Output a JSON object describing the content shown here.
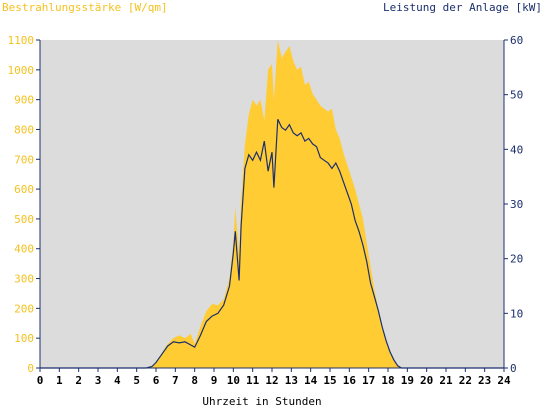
{
  "chart_data": {
    "type": "area",
    "left_axis_label": "Bestrahlungsstärke [W/qm]",
    "right_axis_label": "Leistung der Anlage [kW]",
    "xlabel": "Uhrzeit in Stunden",
    "xlim": [
      0,
      24
    ],
    "ylim_left": [
      0,
      1100
    ],
    "ylim_right": [
      0,
      60
    ],
    "x_ticks": [
      0,
      1,
      2,
      3,
      4,
      5,
      6,
      7,
      8,
      9,
      10,
      11,
      12,
      13,
      14,
      15,
      16,
      17,
      18,
      19,
      20,
      21,
      22,
      23,
      24
    ],
    "y_left_ticks": [
      0,
      100,
      200,
      300,
      400,
      500,
      600,
      700,
      800,
      900,
      1000,
      1100
    ],
    "y_right_ticks": [
      0,
      10,
      20,
      30,
      40,
      50,
      60
    ],
    "colors": {
      "irradiance": "#ffcc33",
      "power": "#1c2f6e",
      "plot_bg": "#dcdcdc",
      "axis": "#1c2f6e",
      "left_text": "#f4c21f"
    },
    "series": [
      {
        "name": "Bestrahlungsstärke",
        "axis": "left",
        "x": [
          0,
          5.5,
          5.8,
          6.0,
          6.3,
          6.6,
          6.9,
          7.2,
          7.5,
          7.8,
          8.0,
          8.3,
          8.6,
          8.9,
          9.2,
          9.5,
          9.8,
          10.0,
          10.1,
          10.3,
          10.4,
          10.6,
          10.8,
          11.0,
          11.2,
          11.4,
          11.6,
          11.8,
          12.0,
          12.1,
          12.3,
          12.5,
          12.7,
          12.9,
          13.1,
          13.3,
          13.5,
          13.7,
          13.9,
          14.1,
          14.3,
          14.5,
          14.7,
          14.9,
          15.1,
          15.3,
          15.5,
          15.7,
          15.9,
          16.1,
          16.3,
          16.5,
          16.7,
          16.9,
          17.1,
          17.3,
          17.5,
          17.7,
          17.9,
          18.1,
          18.3,
          18.5,
          18.7,
          18.9,
          19.1,
          19.3,
          24
        ],
        "values": [
          0,
          0,
          5,
          20,
          50,
          80,
          100,
          110,
          100,
          115,
          80,
          140,
          190,
          215,
          210,
          230,
          300,
          420,
          540,
          380,
          560,
          750,
          850,
          900,
          880,
          900,
          830,
          1000,
          1020,
          900,
          1100,
          1040,
          1060,
          1080,
          1030,
          1000,
          1010,
          950,
          960,
          920,
          900,
          880,
          870,
          860,
          870,
          800,
          770,
          720,
          680,
          640,
          600,
          550,
          500,
          420,
          340,
          260,
          200,
          140,
          90,
          50,
          25,
          10,
          2,
          0,
          0,
          0,
          0
        ]
      },
      {
        "name": "Leistung der Anlage",
        "axis": "right",
        "x": [
          0,
          5.5,
          5.8,
          6.0,
          6.3,
          6.6,
          6.9,
          7.2,
          7.5,
          7.8,
          8.0,
          8.3,
          8.6,
          8.9,
          9.2,
          9.5,
          9.8,
          10.0,
          10.1,
          10.3,
          10.4,
          10.6,
          10.8,
          11.0,
          11.2,
          11.4,
          11.6,
          11.8,
          12.0,
          12.1,
          12.3,
          12.5,
          12.7,
          12.9,
          13.1,
          13.3,
          13.5,
          13.7,
          13.9,
          14.1,
          14.3,
          14.5,
          14.7,
          14.9,
          15.1,
          15.3,
          15.5,
          15.7,
          15.9,
          16.1,
          16.3,
          16.5,
          16.7,
          16.9,
          17.1,
          17.3,
          17.5,
          17.7,
          17.9,
          18.1,
          18.3,
          18.5,
          18.7,
          18.9,
          19.1,
          19.3,
          24
        ],
        "values": [
          0,
          0,
          0.3,
          1.0,
          2.5,
          4.0,
          4.8,
          4.6,
          4.8,
          4.2,
          3.8,
          6.0,
          8.5,
          9.5,
          10.0,
          11.5,
          15.0,
          21.0,
          25.0,
          16.0,
          26.0,
          36.5,
          39.0,
          38.0,
          39.5,
          38.0,
          41.5,
          36.0,
          39.5,
          33.0,
          45.5,
          44.0,
          43.5,
          44.5,
          43.0,
          42.5,
          43.0,
          41.5,
          42.0,
          41.0,
          40.5,
          38.5,
          38.0,
          37.5,
          36.5,
          37.5,
          36.0,
          34.0,
          32.0,
          30.0,
          27.0,
          25.0,
          22.5,
          19.5,
          15.5,
          13.0,
          10.5,
          7.5,
          5.0,
          3.0,
          1.5,
          0.4,
          0,
          0,
          0,
          0,
          0
        ]
      }
    ],
    "grid": false,
    "legend": "none"
  }
}
